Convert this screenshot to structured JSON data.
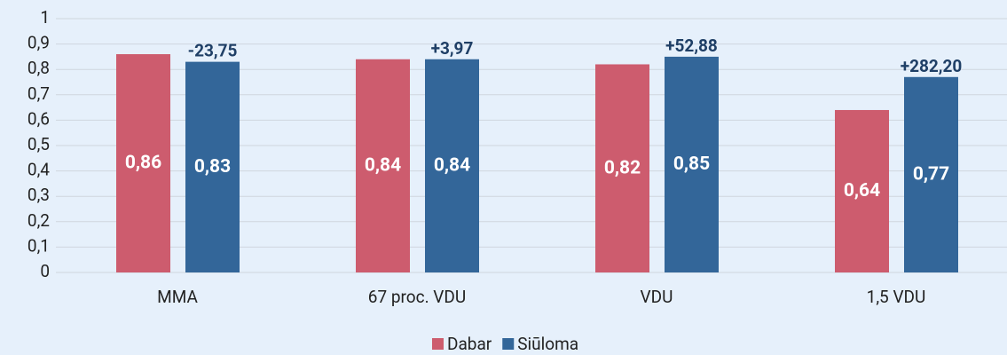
{
  "chart_data": {
    "type": "bar",
    "categories": [
      "MMA",
      "67 proc. VDU",
      "VDU",
      "1,5 VDU"
    ],
    "series": [
      {
        "name": "Dabar",
        "color": "#cd5c6e",
        "values": [
          0.86,
          0.84,
          0.82,
          0.64
        ],
        "value_labels": [
          "0,86",
          "0,84",
          "0,82",
          "0,64"
        ]
      },
      {
        "name": "Siūloma",
        "color": "#336699",
        "values": [
          0.83,
          0.84,
          0.85,
          0.77
        ],
        "value_labels": [
          "0,83",
          "0,84",
          "0,85",
          "0,77"
        ]
      }
    ],
    "annotations": [
      "-23,75",
      "+3,97",
      "+52,88",
      "+282,20"
    ],
    "ylim": [
      0,
      1
    ],
    "yticks": [
      0,
      {
        "value": 0.1,
        "label": "0,1"
      },
      {
        "value": 0.2,
        "label": "0,2"
      },
      {
        "value": 0.3,
        "label": "0,3"
      },
      {
        "value": 0.4,
        "label": "0,4"
      },
      {
        "value": 0.5,
        "label": "0,5"
      },
      {
        "value": 0.6,
        "label": "0,6"
      },
      {
        "value": 0.7,
        "label": "0,7"
      },
      {
        "value": 0.8,
        "label": "0,8"
      },
      {
        "value": 0.9,
        "label": "0,9"
      },
      1
    ],
    "grid": true,
    "legend": "bottom"
  }
}
